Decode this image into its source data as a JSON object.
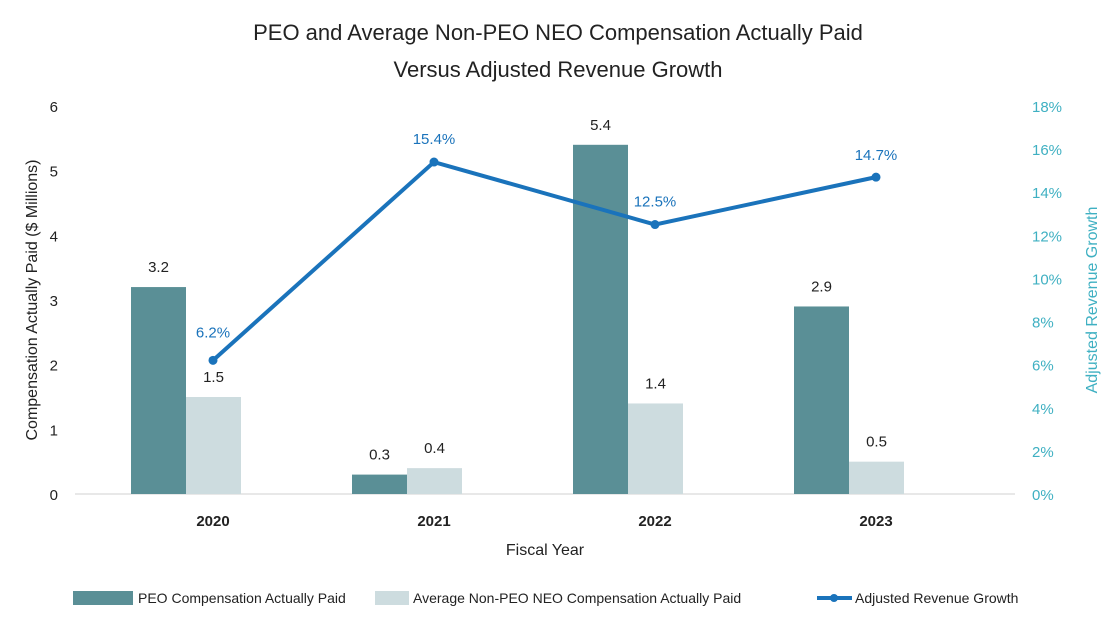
{
  "chart_data": {
    "type": "bar+line",
    "title_line1": "PEO and Average Non-PEO NEO Compensation Actually Paid",
    "title_line2": "Versus Adjusted Revenue Growth",
    "xlabel": "Fiscal Year",
    "ylabel": "Compensation Actually Paid ($ Millions)",
    "y2label": "Adjusted Revenue Growth",
    "categories": [
      "2020",
      "2021",
      "2022",
      "2023"
    ],
    "ylim": [
      0,
      6
    ],
    "yticks": [
      "0",
      "1",
      "2",
      "3",
      "4",
      "5",
      "6"
    ],
    "y2lim": [
      0,
      18
    ],
    "y2ticks": [
      "0%",
      "2%",
      "4%",
      "6%",
      "8%",
      "10%",
      "12%",
      "14%",
      "16%",
      "18%"
    ],
    "grid": false,
    "legend_position": "bottom",
    "series": [
      {
        "name": "PEO Compensation Actually Paid",
        "kind": "bar",
        "color": "#5a8f96",
        "values": [
          3.2,
          0.3,
          5.4,
          2.9
        ],
        "labels": [
          "3.2",
          "0.3",
          "5.4",
          "2.9"
        ]
      },
      {
        "name": "Average Non-PEO NEO Compensation Actually Paid",
        "kind": "bar",
        "color": "#cddcdf",
        "values": [
          1.5,
          0.4,
          1.4,
          0.5
        ],
        "labels": [
          "1.5",
          "0.4",
          "1.4",
          "0.5"
        ]
      },
      {
        "name": "Adjusted Revenue Growth",
        "kind": "line",
        "axis": "right",
        "color": "#1a73bb",
        "values": [
          6.2,
          15.4,
          12.5,
          14.7
        ],
        "labels": [
          "6.2%",
          "15.4%",
          "12.5%",
          "14.7%"
        ]
      }
    ],
    "right_axis_color": "#3fb0c2"
  }
}
